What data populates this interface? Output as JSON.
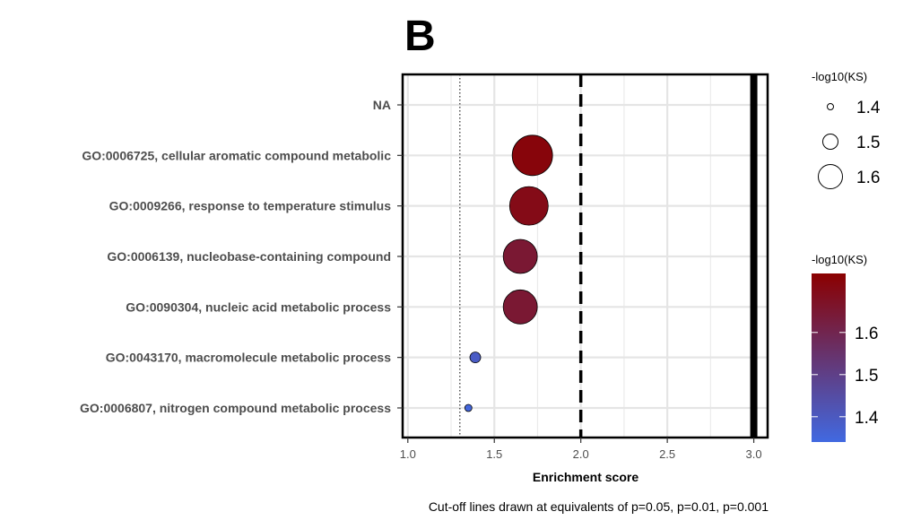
{
  "panel_label": "B",
  "caption": "Cut-off lines drawn at equivalents of p=0.05, p=0.01, p=0.001",
  "chart_data": {
    "type": "scatter",
    "title": "",
    "xlabel": "Enrichment score",
    "ylabel": "",
    "xlim": [
      0.97,
      3.08
    ],
    "xticks": [
      1.0,
      1.5,
      2.0,
      2.5,
      3.0
    ],
    "xtick_labels": [
      "1.0",
      "1.5",
      "2.0",
      "2.5",
      "3.0"
    ],
    "grid": true,
    "categories": [
      "NA",
      "GO:0006725, cellular aromatic compound metabolic",
      "GO:0009266, response to temperature stimulus",
      "GO:0006139, nucleobase-containing compound",
      "GO:0090304, nucleic acid metabolic process",
      "GO:0043170, macromolecule metabolic process",
      "GO:0006807, nitrogen compound metabolic process"
    ],
    "points": [
      {
        "category": "GO:0006725, cellular aromatic compound metabolic",
        "x": 1.72,
        "neglog10KS": 1.72
      },
      {
        "category": "GO:0009266, response to temperature stimulus",
        "x": 1.7,
        "neglog10KS": 1.7
      },
      {
        "category": "GO:0006139, nucleobase-containing compound",
        "x": 1.65,
        "neglog10KS": 1.65
      },
      {
        "category": "GO:0090304, nucleic acid metabolic process",
        "x": 1.65,
        "neglog10KS": 1.65
      },
      {
        "category": "GO:0043170, macromolecule metabolic process",
        "x": 1.39,
        "neglog10KS": 1.39
      },
      {
        "category": "GO:0006807, nitrogen compound metabolic process",
        "x": 1.35,
        "neglog10KS": 1.35
      }
    ],
    "cutoff_lines": [
      {
        "x": 1.301,
        "style": "dotted"
      },
      {
        "x": 2.0,
        "style": "dashed"
      },
      {
        "x": 3.0,
        "style": "solid"
      }
    ],
    "size_legend": {
      "title": "-log10(KS)",
      "values": [
        1.4,
        1.5,
        1.6
      ],
      "labels": [
        "1.4",
        "1.5",
        "1.6"
      ],
      "placement": "right"
    },
    "color_legend": {
      "title": "-log10(KS)",
      "range": [
        1.34,
        1.74
      ],
      "ticks": [
        1.4,
        1.5,
        1.6
      ],
      "tick_labels": [
        "1.4",
        "1.5",
        "1.6"
      ],
      "low_color": "#4169e1",
      "high_color": "#8b0000",
      "placement": "right"
    }
  }
}
